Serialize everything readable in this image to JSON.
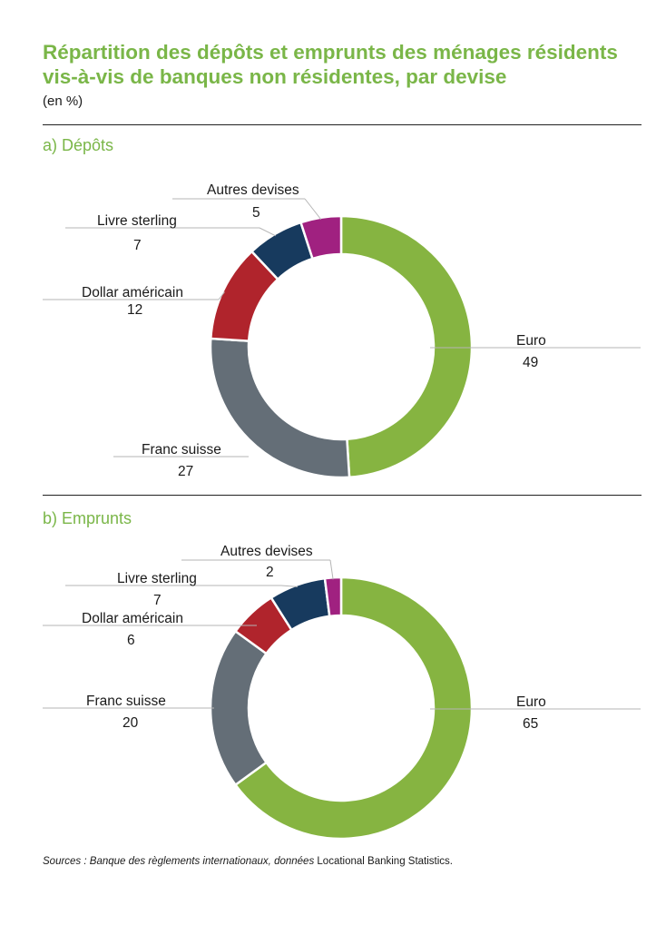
{
  "header": {
    "title": "Répartition des dépôts et emprunts des ménages résidents vis-à-vis de banques non résidentes, par devise",
    "subtitle": "(en %)"
  },
  "colors": {
    "euro": "#86b441",
    "franc_suisse": "#646e77",
    "dollar": "#b0242c",
    "livre": "#173a5e",
    "autres": "#a02180",
    "accent": "#7ab648",
    "leader": "#b5b5b5"
  },
  "chart_data": [
    {
      "type": "pie",
      "label": "a)  Dépôts",
      "categories": [
        "Euro",
        "Franc suisse",
        "Dollar américain",
        "Livre sterling",
        "Autres devises"
      ],
      "values": [
        49,
        27,
        12,
        7,
        5
      ],
      "value_labels": [
        "49",
        "27",
        "12",
        "7",
        "5"
      ],
      "colors": [
        "#86b441",
        "#646e77",
        "#b0242c",
        "#173a5e",
        "#a02180"
      ]
    },
    {
      "type": "pie",
      "label": "b)  Emprunts",
      "categories": [
        "Euro",
        "Franc suisse",
        "Dollar américain",
        "Livre sterling",
        "Autres devises"
      ],
      "values": [
        65,
        20,
        6,
        7,
        2
      ],
      "value_labels": [
        "65",
        "20",
        "6",
        "7",
        "2"
      ],
      "colors": [
        "#86b441",
        "#646e77",
        "#b0242c",
        "#173a5e",
        "#a02180"
      ]
    }
  ],
  "source": {
    "italic": "Sources : Banque des règlements internationaux, données",
    "normal": "Locational Banking Statistics."
  }
}
